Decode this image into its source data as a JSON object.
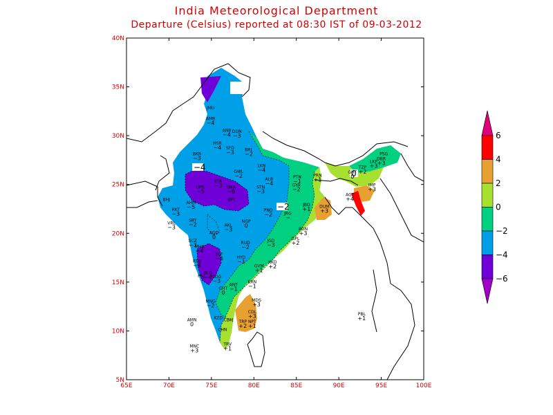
{
  "title": "India Meteorological Department",
  "subtitle": "Departure (Celsius) reported at 08:30 IST of 09-03-2012",
  "lat_labels": [
    "40N",
    "35N",
    "30N",
    "25N",
    "20N",
    "15N",
    "10N",
    "5N"
  ],
  "lon_labels": [
    "65E",
    "70E",
    "75E",
    "80E",
    "85E",
    "90E",
    "95E",
    "100E"
  ],
  "legend": {
    "labels": [
      "6",
      "4",
      "2",
      "0",
      "−2",
      "−4",
      "−6"
    ],
    "colors": [
      "#e0007a",
      "#ff0000",
      "#e8a030",
      "#a8e030",
      "#00d080",
      "#00a0e8",
      "#7000d8",
      "#a000c8"
    ]
  },
  "colors": {
    "band_m6": "#7000d8",
    "band_m4": "#00a0e8",
    "band_m2": "#00d080",
    "band_0": "#a8e030",
    "band_2": "#e8a030",
    "band_4": "#ff0000"
  },
  "contour_labels": [
    "−4",
    "0",
    "−2"
  ],
  "stations": [
    {
      "name": "JMU",
      "val": "",
      "lon": 74.9,
      "lat": 32.7
    },
    {
      "name": "AMR",
      "val": "−4",
      "lon": 74.9,
      "lat": 31.6
    },
    {
      "name": "ANB",
      "val": "−4",
      "lon": 76.8,
      "lat": 30.4
    },
    {
      "name": "DDN",
      "val": "−3",
      "lon": 78.0,
      "lat": 30.3
    },
    {
      "name": "HSR",
      "val": "−4",
      "lon": 75.7,
      "lat": 29.1
    },
    {
      "name": "SFD",
      "val": "−3",
      "lon": 77.2,
      "lat": 28.6
    },
    {
      "name": "BRL",
      "val": "−2",
      "lon": 79.4,
      "lat": 28.4
    },
    {
      "name": "BKR",
      "val": "−3",
      "lon": 73.3,
      "lat": 28.0
    },
    {
      "name": "LKN",
      "val": "−4",
      "lon": 80.9,
      "lat": 26.8
    },
    {
      "name": "GWL",
      "val": "−2",
      "lon": 78.2,
      "lat": 26.2
    },
    {
      "name": "KTA",
      "val": "−3",
      "lon": 75.8,
      "lat": 25.2
    },
    {
      "name": "UPR",
      "val": "−5",
      "lon": 73.7,
      "lat": 24.6
    },
    {
      "name": "GNA",
      "val": "−6",
      "lon": 77.3,
      "lat": 24.6
    },
    {
      "name": "ALB",
      "val": "−4",
      "lon": 81.8,
      "lat": 25.4
    },
    {
      "name": "STN",
      "val": "−3",
      "lon": 80.8,
      "lat": 24.6
    },
    {
      "name": "PTN",
      "val": "−1",
      "lon": 85.1,
      "lat": 25.6
    },
    {
      "name": "GYA",
      "val": "−2",
      "lon": 85.0,
      "lat": 24.8
    },
    {
      "name": "PRN",
      "val": "+1",
      "lon": 87.5,
      "lat": 25.8
    },
    {
      "name": "AHM",
      "val": "−5",
      "lon": 72.6,
      "lat": 23.0
    },
    {
      "name": "BPL",
      "val": "",
      "lon": 77.4,
      "lat": 23.3
    },
    {
      "name": "BHJ",
      "val": "",
      "lon": 69.7,
      "lat": 23.3
    },
    {
      "name": "RKT",
      "val": "−3",
      "lon": 70.8,
      "lat": 22.3
    },
    {
      "name": "PND",
      "val": "−2",
      "lon": 81.7,
      "lat": 22.2
    },
    {
      "name": "JBD",
      "val": "+1",
      "lon": 86.2,
      "lat": 22.8
    },
    {
      "name": "DUM",
      "val": "+3",
      "lon": 88.3,
      "lat": 22.6
    },
    {
      "name": "VRL",
      "val": "−3",
      "lon": 70.3,
      "lat": 20.9
    },
    {
      "name": "SRT",
      "val": "−2",
      "lon": 72.8,
      "lat": 21.2
    },
    {
      "name": "JRG",
      "val": "−",
      "lon": 84.0,
      "lat": 21.9
    },
    {
      "name": "NGP",
      "val": "0",
      "lon": 79.1,
      "lat": 21.1
    },
    {
      "name": "BGN",
      "val": "+3",
      "lon": 85.8,
      "lat": 20.3
    },
    {
      "name": "AGD",
      "val": "0",
      "lon": 75.3,
      "lat": 19.9
    },
    {
      "name": "AKL",
      "val": "−3",
      "lon": 77.0,
      "lat": 20.7
    },
    {
      "name": "GPL",
      "val": "+2",
      "lon": 84.9,
      "lat": 19.3
    },
    {
      "name": "SCZ",
      "val": "−3",
      "lon": 72.8,
      "lat": 19.1
    },
    {
      "name": "MHB",
      "val": "−4",
      "lon": 73.6,
      "lat": 18.5
    },
    {
      "name": "RUD",
      "val": "−2",
      "lon": 79.0,
      "lat": 18.9
    },
    {
      "name": "JGD",
      "val": "−3",
      "lon": 82.0,
      "lat": 19.1
    },
    {
      "name": "SLP",
      "val": "−4",
      "lon": 75.9,
      "lat": 17.7
    },
    {
      "name": "HYD",
      "val": "−1",
      "lon": 78.5,
      "lat": 17.4
    },
    {
      "name": "RTN",
      "val": "−4",
      "lon": 73.3,
      "lat": 17.0
    },
    {
      "name": "KKD",
      "val": "+2",
      "lon": 82.2,
      "lat": 16.9
    },
    {
      "name": "GVM",
      "val": "+1",
      "lon": 80.6,
      "lat": 16.5
    },
    {
      "name": "BLG",
      "val": "−4",
      "lon": 74.6,
      "lat": 15.8
    },
    {
      "name": "PNJ",
      "val": "",
      "lon": 73.8,
      "lat": 15.5
    },
    {
      "name": "GDG",
      "val": "−3",
      "lon": 75.6,
      "lat": 15.4
    },
    {
      "name": "KRN",
      "val": "−1",
      "lon": 79.8,
      "lat": 14.9
    },
    {
      "name": "ANT",
      "val": "−1",
      "lon": 77.6,
      "lat": 14.6
    },
    {
      "name": "CHT",
      "val": "0",
      "lon": 76.4,
      "lat": 14.2
    },
    {
      "name": "MNG",
      "val": "−2",
      "lon": 74.9,
      "lat": 12.9
    },
    {
      "name": "MDS",
      "val": "+3",
      "lon": 80.3,
      "lat": 13.0
    },
    {
      "name": "CDL",
      "val": "+3",
      "lon": 79.8,
      "lat": 11.8
    },
    {
      "name": "KZD",
      "val": "",
      "lon": 75.8,
      "lat": 11.2
    },
    {
      "name": "CBM",
      "val": "",
      "lon": 77.0,
      "lat": 11.0
    },
    {
      "name": "TRP",
      "val": "+2",
      "lon": 78.7,
      "lat": 10.8
    },
    {
      "name": "NPT",
      "val": "+1",
      "lon": 79.8,
      "lat": 10.8
    },
    {
      "name": "CHN",
      "val": "",
      "lon": 76.3,
      "lat": 10.0
    },
    {
      "name": "AMN",
      "val": "0",
      "lon": 72.7,
      "lat": 11.0
    },
    {
      "name": "TRV",
      "val": "+1",
      "lon": 76.9,
      "lat": 8.5
    },
    {
      "name": "MNC",
      "val": "+3",
      "lon": 73.0,
      "lat": 8.3
    },
    {
      "name": "GHT",
      "val": "0",
      "lon": 91.6,
      "lat": 26.1
    },
    {
      "name": "TZP",
      "val": "+2",
      "lon": 92.8,
      "lat": 26.6
    },
    {
      "name": "LKP",
      "val": "+3",
      "lon": 94.1,
      "lat": 27.2
    },
    {
      "name": "DBR",
      "val": "+3",
      "lon": 95.0,
      "lat": 27.5
    },
    {
      "name": "PSG",
      "val": "",
      "lon": 95.3,
      "lat": 28.0
    },
    {
      "name": "IMP",
      "val": "+3",
      "lon": 93.9,
      "lat": 24.8
    },
    {
      "name": "AGT",
      "val": "+4",
      "lon": 91.3,
      "lat": 23.8
    },
    {
      "name": "PBL",
      "val": "+1",
      "lon": 92.7,
      "lat": 11.6
    }
  ]
}
